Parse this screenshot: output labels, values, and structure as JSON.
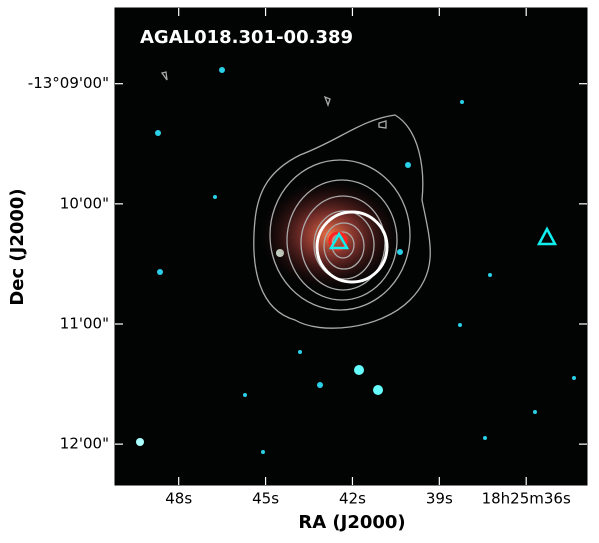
{
  "chart_data": {
    "type": "image",
    "title": "AGAL018.301-00.389",
    "xlabel": "RA (J2000)",
    "ylabel": "Dec (J2000)",
    "xlim": [
      50.2,
      33.9
    ],
    "xticks": [
      {
        "value": 48,
        "label": "48s"
      },
      {
        "value": 45,
        "label": "45s"
      },
      {
        "value": 42,
        "label": "42s"
      },
      {
        "value": 39,
        "label": "39s"
      },
      {
        "value": 36,
        "label": "18h25m36s"
      }
    ],
    "ylim": [
      12.34,
      8.37
    ],
    "yticks": [
      {
        "value": 9,
        "label": "-13°09'00\""
      },
      {
        "value": 10,
        "label": "10'00\""
      },
      {
        "value": 11,
        "label": "11'00\""
      },
      {
        "value": 12,
        "label": "12'00\""
      }
    ]
  }
}
